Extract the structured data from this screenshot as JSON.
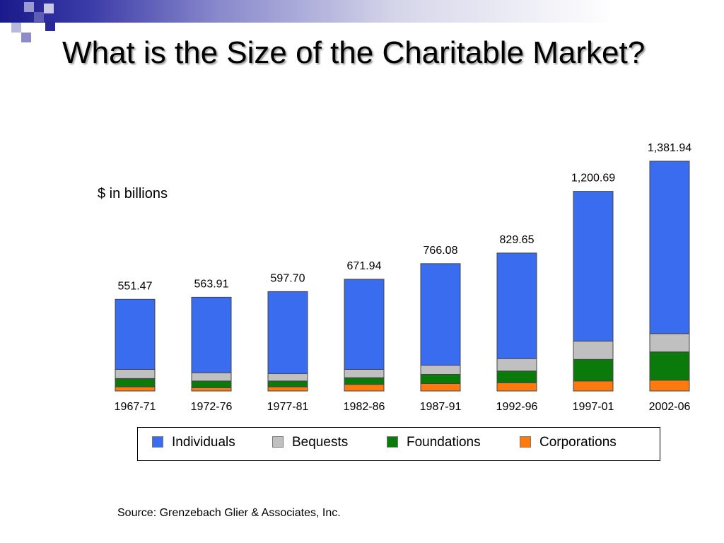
{
  "slide": {
    "title": "What is the Size of the Charitable Market?",
    "unit_note": "$ in billions",
    "source": "Source: Grenzebach Glier & Associates, Inc."
  },
  "colors": {
    "Individuals": "#3a6cf0",
    "Bequests": "#c0c0c0",
    "Foundations": "#0a7a0a",
    "Corporations": "#ff7a0e"
  },
  "legend": {
    "items": [
      {
        "label": "Individuals",
        "color": "#3a6cf0"
      },
      {
        "label": "Bequests",
        "color": "#c0c0c0"
      },
      {
        "label": "Foundations",
        "color": "#0a7a0a"
      },
      {
        "label": "Corporations",
        "color": "#ff7a0e"
      }
    ]
  },
  "chart_data": {
    "type": "bar",
    "stacked": true,
    "categories": [
      "1967-71",
      "1972-76",
      "1977-81",
      "1982-86",
      "1987-91",
      "1992-96",
      "1997-01",
      "2002-06"
    ],
    "totals": [
      "551.47",
      "563.91",
      "597.70",
      "671.94",
      "766.08",
      "829.65",
      "1,200.69",
      "1,381.94"
    ],
    "series": [
      {
        "name": "Corporations",
        "values": [
          25,
          20,
          25,
          40,
          45,
          50,
          60,
          65
        ]
      },
      {
        "name": "Foundations",
        "values": [
          50,
          40,
          35,
          40,
          55,
          70,
          130,
          170
        ]
      },
      {
        "name": "Bequests",
        "values": [
          55,
          50,
          45,
          50,
          55,
          75,
          110,
          110
        ]
      },
      {
        "name": "Individuals",
        "values": [
          421.47,
          453.91,
          492.7,
          541.94,
          611.08,
          634.65,
          900.69,
          1036.94
        ]
      }
    ],
    "ylim": [
      0,
      1381.94
    ],
    "grid": false,
    "legend_position": "bottom",
    "xlabel": "",
    "ylabel": ""
  }
}
